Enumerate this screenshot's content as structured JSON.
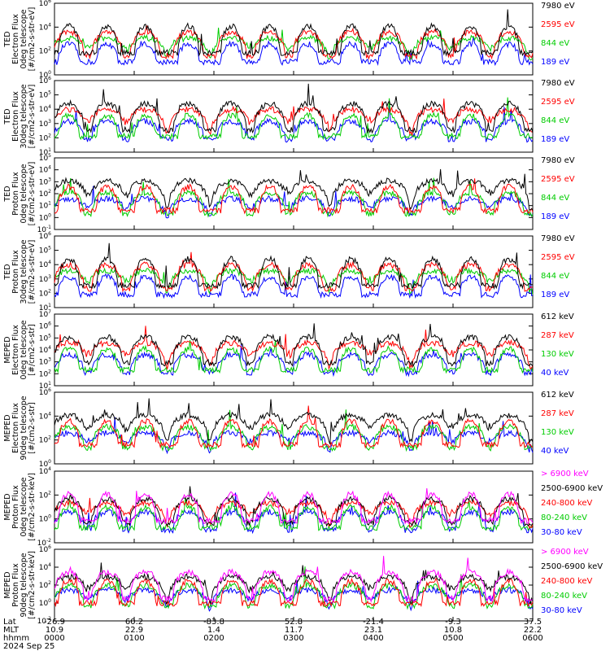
{
  "chart_data": {
    "type": "line",
    "time_axis": {
      "row_labels": [
        "Lat",
        "MLT",
        "hhmm"
      ],
      "lat": [
        "-26.9",
        "60.2",
        "-83.8",
        "52.8",
        "-21.4",
        "-9.3",
        "37.5"
      ],
      "mlt": [
        "10.9",
        "22.9",
        "1.4",
        "11.7",
        "23.1",
        "10.8",
        "22.2"
      ],
      "hhmm": [
        "0000",
        "0100",
        "0200",
        "0300",
        "0400",
        "0500",
        "0600"
      ],
      "date": "2024 Sep 25",
      "xlim": [
        "0000",
        "0600"
      ]
    },
    "panels": [
      {
        "ylabel": [
          "TED",
          "Electron Flux",
          "0deg telescope",
          "[#/cm2-s-str-eV]"
        ],
        "ytick_exponents": [
          0,
          2,
          4,
          6
        ],
        "ylim_log10": [
          0,
          6
        ],
        "legend": [
          {
            "label": "7980 eV",
            "color": "#000000"
          },
          {
            "label": "2595 eV",
            "color": "#ff0000"
          },
          {
            "label": "844 eV",
            "color": "#00cc00"
          },
          {
            "label": "189 eV",
            "color": "#0000ff"
          }
        ]
      },
      {
        "ylabel": [
          "TED",
          "Electron Flux",
          "30deg telescope",
          "[#/cm2-s-str-eV]"
        ],
        "ytick_exponents": [
          1,
          2,
          3,
          4,
          5,
          6
        ],
        "ylim_log10": [
          1,
          6
        ],
        "legend": [
          {
            "label": "7980 eV",
            "color": "#000000"
          },
          {
            "label": "2595 eV",
            "color": "#ff0000"
          },
          {
            "label": "844 eV",
            "color": "#00cc00"
          },
          {
            "label": "189 eV",
            "color": "#0000ff"
          }
        ]
      },
      {
        "ylabel": [
          "TED",
          "Proton Flux",
          "0deg telescope",
          "[#/cm2-s-str-eV]"
        ],
        "ytick_exponents": [
          -1,
          0,
          1,
          2,
          3,
          4,
          5
        ],
        "ylim_log10": [
          -1,
          5
        ],
        "legend": [
          {
            "label": "7980 eV",
            "color": "#000000"
          },
          {
            "label": "2595 eV",
            "color": "#ff0000"
          },
          {
            "label": "844 eV",
            "color": "#00cc00"
          },
          {
            "label": "189 eV",
            "color": "#0000ff"
          }
        ]
      },
      {
        "ylabel": [
          "TED",
          "Proton Flux",
          "30deg telescope",
          "[#/cm2-s-str-eV]"
        ],
        "ytick_exponents": [
          1,
          2,
          3,
          4,
          5,
          6
        ],
        "ylim_log10": [
          1,
          6
        ],
        "legend": [
          {
            "label": "7980 eV",
            "color": "#000000"
          },
          {
            "label": "2595 eV",
            "color": "#ff0000"
          },
          {
            "label": "844 eV",
            "color": "#00cc00"
          },
          {
            "label": "189 eV",
            "color": "#0000ff"
          }
        ]
      },
      {
        "ylabel": [
          "MEPED",
          "Electron Flux",
          "0deg telescope",
          "[#/cm2-s-str]"
        ],
        "ytick_exponents": [
          1,
          2,
          3,
          4,
          5,
          6,
          7
        ],
        "ylim_log10": [
          1,
          7
        ],
        "legend": [
          {
            "label": "612 keV",
            "color": "#000000"
          },
          {
            "label": "287 keV",
            "color": "#ff0000"
          },
          {
            "label": "130 keV",
            "color": "#00cc00"
          },
          {
            "label": "40 keV",
            "color": "#0000ff"
          }
        ]
      },
      {
        "ylabel": [
          "MEPED",
          "Electron Flux",
          "90deg telescope",
          "[#/cm2-s-str]"
        ],
        "ytick_exponents": [
          0,
          2,
          4,
          6
        ],
        "ylim_log10": [
          0,
          6
        ],
        "legend": [
          {
            "label": "612 keV",
            "color": "#000000"
          },
          {
            "label": "287 keV",
            "color": "#ff0000"
          },
          {
            "label": "130 keV",
            "color": "#00cc00"
          },
          {
            "label": "40 keV",
            "color": "#0000ff"
          }
        ]
      },
      {
        "ylabel": [
          "MEPED",
          "Proton Flux",
          "0deg telescope",
          "[#/cm2-s-str-keV]"
        ],
        "ytick_exponents": [
          -2,
          0,
          2,
          4
        ],
        "ylim_log10": [
          -2,
          4
        ],
        "legend": [
          {
            "label": "> 6900 keV",
            "color": "#ff00ff"
          },
          {
            "label": "2500-6900 keV",
            "color": "#000000"
          },
          {
            "label": "240-800 keV",
            "color": "#ff0000"
          },
          {
            "label": "80-240 keV",
            "color": "#00cc00"
          },
          {
            "label": "30-80 keV",
            "color": "#0000ff"
          }
        ]
      },
      {
        "ylabel": [
          "MEPED",
          "Proton Flux",
          "90deg telescope",
          "[#/cm2-s-str-keV]"
        ],
        "ytick_exponents": [
          -2,
          0,
          2,
          4,
          6
        ],
        "ylim_log10": [
          -2,
          6
        ],
        "legend": [
          {
            "label": "> 6900 keV",
            "color": "#ff00ff"
          },
          {
            "label": "2500-6900 keV",
            "color": "#000000"
          },
          {
            "label": "240-800 keV",
            "color": "#ff0000"
          },
          {
            "label": "80-240 keV",
            "color": "#00cc00"
          },
          {
            "label": "30-80 keV",
            "color": "#0000ff"
          }
        ]
      }
    ]
  }
}
